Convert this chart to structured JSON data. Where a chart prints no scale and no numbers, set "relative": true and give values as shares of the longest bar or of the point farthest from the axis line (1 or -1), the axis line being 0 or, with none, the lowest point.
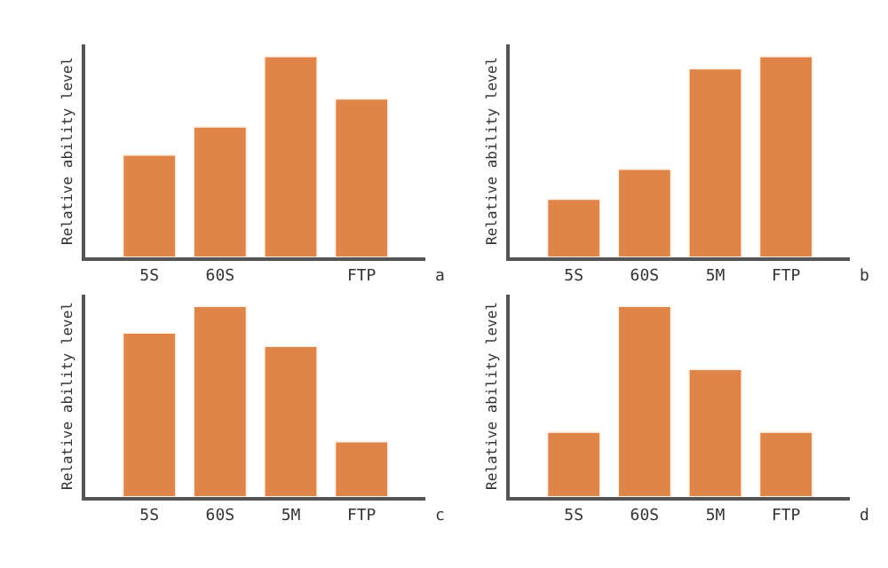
{
  "chart_data": [
    {
      "type": "bar",
      "relative": true,
      "categories": [
        "5S",
        "60S",
        null,
        "FTP"
      ],
      "values": [
        0.51,
        0.65,
        1,
        0.79
      ],
      "color": "#e0854a",
      "ylabel": "Relative ability level",
      "xlabel": "a"
    },
    {
      "type": "bar",
      "relative": true,
      "categories": [
        "5S",
        "60S",
        "5M",
        "FTP"
      ],
      "values": [
        0.29,
        0.44,
        0.94,
        1
      ],
      "color": "#e0854a",
      "ylabel": "Relative ability level",
      "xlabel": "b"
    },
    {
      "type": "bar",
      "relative": true,
      "categories": [
        "5S",
        "60S",
        "5M",
        "FTP"
      ],
      "values": [
        0.86,
        1,
        0.79,
        0.29
      ],
      "color": "#e0854a",
      "ylabel": "Relative ability level",
      "xlabel": "c"
    },
    {
      "type": "bar",
      "relative": true,
      "categories": [
        "5S",
        "60S",
        "5M",
        "FTP"
      ],
      "values": [
        0.34,
        1,
        0.67,
        0.34
      ],
      "color": "#e0854a",
      "ylabel": "Relative ability level",
      "xlabel": "d"
    }
  ]
}
